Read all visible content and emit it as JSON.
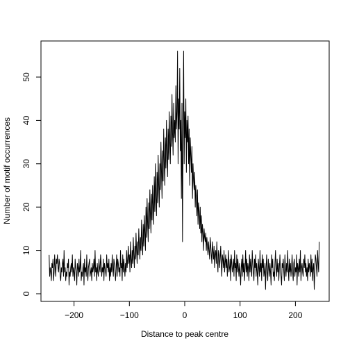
{
  "chart_data": {
    "type": "line",
    "title": "",
    "xlabel": "Distance to peak centre",
    "ylabel": "Number of motif occurrences",
    "xlim": [
      -250,
      250
    ],
    "ylim": [
      0,
      57
    ],
    "xticks": [
      -200,
      -100,
      0,
      100,
      200
    ],
    "xtick_labels": [
      "−200",
      "−100",
      "0",
      "100",
      "200"
    ],
    "yticks": [
      0,
      10,
      20,
      30,
      40,
      50
    ],
    "ytick_labels": [
      "0",
      "10",
      "20",
      "30",
      "40",
      "50"
    ],
    "grid": false,
    "legend": "none",
    "line_color": "#000000",
    "series": [
      {
        "x_start": -245,
        "x_step": 1,
        "values": [
          9,
          4,
          6,
          5,
          3,
          7,
          6,
          8,
          3,
          5,
          9,
          6,
          4,
          8,
          7,
          9,
          6,
          5,
          8,
          7,
          4,
          3,
          6,
          5,
          7,
          8,
          4,
          10,
          5,
          6,
          3,
          5,
          4,
          7,
          6,
          8,
          2,
          5,
          4,
          6,
          7,
          5,
          9,
          4,
          6,
          5,
          3,
          8,
          6,
          5,
          2,
          7,
          6,
          4,
          8,
          5,
          6,
          10,
          3,
          5,
          4,
          6,
          7,
          2,
          8,
          5,
          6,
          4,
          9,
          5,
          3,
          6,
          7,
          8,
          4,
          5,
          6,
          3,
          7,
          5,
          6,
          8,
          4,
          10,
          5,
          6,
          3,
          7,
          5,
          4,
          8,
          6,
          5,
          9,
          7,
          4,
          6,
          5,
          8,
          3,
          7,
          6,
          5,
          4,
          9,
          6,
          7,
          5,
          8,
          3,
          6,
          4,
          7,
          5,
          9,
          6,
          4,
          8,
          7,
          5,
          3,
          6,
          9,
          4,
          8,
          7,
          5,
          6,
          4,
          10,
          6,
          7,
          3,
          9,
          5,
          8,
          6,
          4,
          7,
          5,
          10,
          6,
          8,
          11,
          7,
          9,
          5,
          12,
          8,
          6,
          10,
          7,
          13,
          9,
          6,
          11,
          8,
          14,
          10,
          7,
          12,
          9,
          15,
          11,
          8,
          13,
          10,
          17,
          12,
          9,
          16,
          11,
          18,
          14,
          10,
          20,
          13,
          22,
          16,
          12,
          21,
          15,
          24,
          18,
          14,
          23,
          17,
          25,
          20,
          16,
          27,
          19,
          30,
          22,
          18,
          28,
          21,
          32,
          25,
          20,
          30,
          24,
          35,
          28,
          22,
          33,
          26,
          38,
          30,
          25,
          36,
          29,
          40,
          32,
          27,
          38,
          31,
          42,
          35,
          30,
          41,
          34,
          46,
          37,
          32,
          44,
          36,
          40,
          35,
          48,
          38,
          42,
          56,
          30,
          45,
          38,
          52,
          33,
          40,
          22,
          44,
          12,
          38,
          56,
          30,
          42,
          36,
          45,
          28,
          40,
          35,
          41,
          30,
          38,
          25,
          36,
          32,
          28,
          34,
          22,
          30,
          26,
          24,
          28,
          20,
          25,
          22,
          18,
          24,
          16,
          21,
          19,
          15,
          20,
          14,
          18,
          12,
          16,
          14,
          10,
          15,
          13,
          12,
          14,
          10,
          13,
          11,
          9,
          12,
          10,
          8,
          13,
          11,
          9,
          7,
          12,
          10,
          8,
          11,
          6,
          9,
          10,
          7,
          12,
          8,
          5,
          10,
          9,
          6,
          8,
          11,
          7,
          4,
          9,
          8,
          6,
          10,
          5,
          7,
          9,
          6,
          8,
          4,
          7,
          10,
          5,
          6,
          8,
          3,
          9,
          7,
          5,
          6,
          8,
          4,
          10,
          6,
          7,
          3,
          9,
          5,
          8,
          6,
          4,
          7,
          5,
          2,
          6,
          8,
          4,
          9,
          5,
          7,
          3,
          6,
          10,
          5,
          8,
          4,
          7,
          6,
          3,
          9,
          5,
          8,
          6,
          4,
          10,
          7,
          5,
          3,
          8,
          6,
          9,
          4,
          7,
          5,
          2,
          8,
          6,
          4,
          10,
          5,
          7,
          3,
          9,
          6,
          8,
          4,
          5,
          7,
          1,
          6,
          9,
          5,
          3,
          8,
          6,
          4,
          7,
          5,
          2,
          9,
          6,
          8,
          4,
          5,
          3,
          7,
          10,
          6,
          4,
          8,
          5,
          7,
          3,
          6,
          9,
          5,
          4,
          2,
          7,
          6,
          8,
          5,
          3,
          9,
          6,
          4,
          7,
          5,
          10,
          6,
          3,
          8,
          5,
          7,
          4,
          6,
          9,
          5,
          3,
          7,
          8,
          4,
          6,
          5,
          9,
          2,
          7,
          6,
          4,
          8,
          5,
          10,
          3,
          6,
          7,
          5,
          4,
          8,
          6,
          9,
          5,
          7,
          4,
          6,
          3,
          8,
          5,
          7,
          6,
          4,
          9,
          5,
          8,
          3,
          6,
          7,
          1,
          5,
          9,
          8,
          6,
          4,
          10,
          7,
          5,
          12
        ]
      }
    ]
  }
}
